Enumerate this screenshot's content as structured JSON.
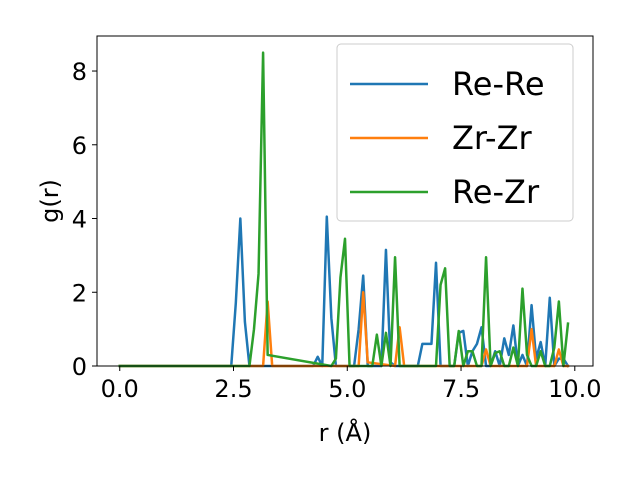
{
  "chart_data": {
    "type": "line",
    "xlabel": "r (Å)",
    "ylabel": "g(r)",
    "xlim": [
      -0.5,
      10.4
    ],
    "ylim": [
      0,
      8.95
    ],
    "x_ticks": [
      0.0,
      2.5,
      5.0,
      7.5,
      10.0
    ],
    "x_tick_labels": [
      "0.0",
      "2.5",
      "5.0",
      "7.5",
      "10.0"
    ],
    "y_ticks": [
      0,
      2,
      4,
      6,
      8
    ],
    "y_tick_labels": [
      "0",
      "2",
      "4",
      "6",
      "8"
    ],
    "grid": false,
    "legend_position": "top-right",
    "series": [
      {
        "name": "Re-Re",
        "color": "#1f77b4",
        "x": [
          0.0,
          2.45,
          2.55,
          2.65,
          2.75,
          2.85,
          4.25,
          4.35,
          4.45,
          4.55,
          4.65,
          4.75,
          5.15,
          5.25,
          5.35,
          5.45,
          5.75,
          5.85,
          5.95,
          6.05,
          6.55,
          6.65,
          6.85,
          6.95,
          7.05,
          7.35,
          7.45,
          7.55,
          7.65,
          7.75,
          7.85,
          7.95,
          8.05,
          8.15,
          8.25,
          8.35,
          8.45,
          8.55,
          8.65,
          8.75,
          8.85,
          8.95,
          9.05,
          9.15,
          9.25,
          9.35,
          9.45,
          9.55,
          9.65,
          9.75,
          9.85
        ],
        "y": [
          0.0,
          0.0,
          1.7,
          4.0,
          1.2,
          0.0,
          0.0,
          0.25,
          0.0,
          4.05,
          1.3,
          0.0,
          0.0,
          1.0,
          2.45,
          0.0,
          0.0,
          3.15,
          0.1,
          0.0,
          0.0,
          0.6,
          0.6,
          2.8,
          0.0,
          0.0,
          0.9,
          0.95,
          0.0,
          0.4,
          0.6,
          1.05,
          0.0,
          0.0,
          0.4,
          0.0,
          0.75,
          0.3,
          1.1,
          0.0,
          0.3,
          0.0,
          1.65,
          0.2,
          0.65,
          0.0,
          1.85,
          0.0,
          0.2,
          0.2,
          0.0
        ]
      },
      {
        "name": "Zr-Zr",
        "color": "#ff7f0e",
        "x": [
          0.0,
          3.15,
          3.25,
          3.35,
          5.25,
          5.35,
          5.45,
          6.05,
          6.15,
          6.25,
          7.95,
          8.05,
          8.15,
          8.95,
          9.05,
          9.15,
          9.55,
          9.65,
          9.75,
          9.85
        ],
        "y": [
          0.0,
          0.0,
          1.75,
          0.0,
          0.0,
          2.0,
          0.1,
          0.0,
          1.05,
          0.0,
          0.0,
          0.45,
          0.0,
          0.0,
          1.0,
          0.0,
          0.0,
          0.45,
          0.0,
          0.0
        ]
      },
      {
        "name": "Re-Zr",
        "color": "#2ca02c",
        "x": [
          0.0,
          2.85,
          2.95,
          3.05,
          3.15,
          3.25,
          4.65,
          4.75,
          4.85,
          4.95,
          5.05,
          5.45,
          5.55,
          5.65,
          5.75,
          5.85,
          5.95,
          6.05,
          6.15,
          6.95,
          7.05,
          7.15,
          7.25,
          7.35,
          7.45,
          7.55,
          7.65,
          7.75,
          7.85,
          7.95,
          8.05,
          8.15,
          8.25,
          8.35,
          8.45,
          8.55,
          8.65,
          8.75,
          8.85,
          8.95,
          9.05,
          9.15,
          9.25,
          9.35,
          9.45,
          9.55,
          9.65,
          9.75,
          9.85
        ],
        "y": [
          0.0,
          0.0,
          1.0,
          2.5,
          8.5,
          0.3,
          0.0,
          0.2,
          2.4,
          3.45,
          0.0,
          0.0,
          0.0,
          0.85,
          0.0,
          0.9,
          0.0,
          2.95,
          0.0,
          0.0,
          2.2,
          2.65,
          0.0,
          0.0,
          0.95,
          0.0,
          0.4,
          0.4,
          0.0,
          0.0,
          2.95,
          0.0,
          0.35,
          0.4,
          0.0,
          0.0,
          0.5,
          0.0,
          2.1,
          0.3,
          0.0,
          0.0,
          0.4,
          0.0,
          0.0,
          0.5,
          1.75,
          0.0,
          1.15
        ]
      }
    ]
  }
}
